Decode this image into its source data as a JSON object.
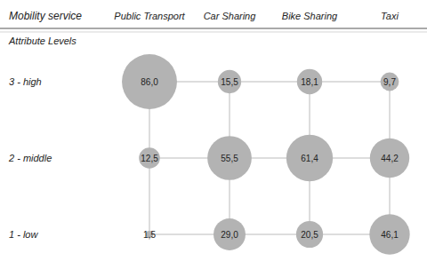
{
  "chart_data": {
    "type": "bubble_grid",
    "x_label": "Mobility service",
    "y_label": "Attribute Levels",
    "categories": [
      "Public Transport",
      "Car Sharing",
      "Bike Sharing",
      "Taxi"
    ],
    "series": [
      {
        "name": "3 - high",
        "values": [
          86.0,
          15.5,
          18.1,
          9.7
        ],
        "value_labels": [
          "86,0",
          "15,5",
          "18,1",
          "9,7"
        ]
      },
      {
        "name": "2 - middle",
        "values": [
          12.5,
          55.5,
          61.4,
          44.2
        ],
        "value_labels": [
          "12,5",
          "55,5",
          "61,4",
          "44,2"
        ]
      },
      {
        "name": "1 - low",
        "values": [
          1.5,
          29.0,
          20.5,
          46.1
        ],
        "value_labels": [
          "1,5",
          "29,0",
          "20,5",
          "46,1"
        ]
      }
    ],
    "color": "#b3b3b3",
    "grid": true,
    "data_labels": true
  }
}
